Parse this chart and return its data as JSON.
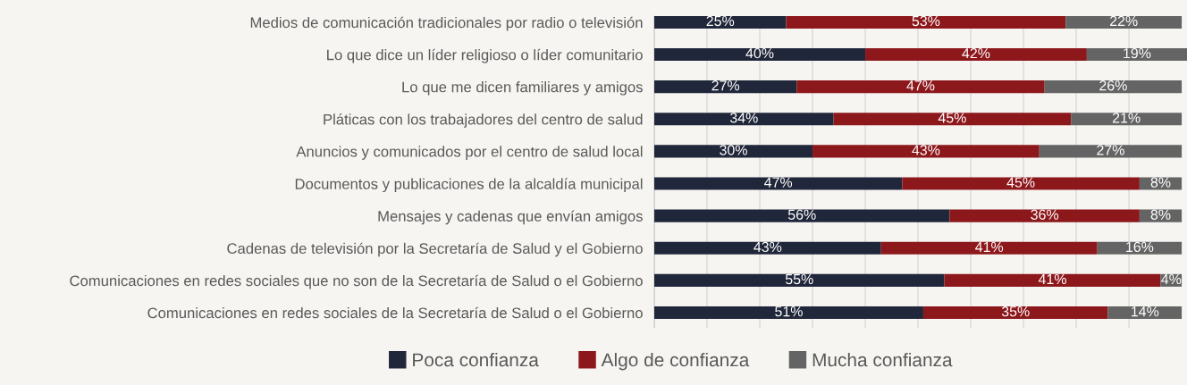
{
  "chart_data": {
    "type": "bar",
    "orientation": "horizontal",
    "stacked": true,
    "categories": [
      "Medios de comunicación tradicionales por radio o televisión",
      "Lo que dice un líder religioso o líder comunitario",
      "Lo que me dicen familiares y amigos",
      "Pláticas con los trabajadores del centro de salud",
      "Anuncios y comunicados por el centro de salud local",
      "Documentos y publicaciones de la alcaldía municipal",
      "Mensajes y cadenas que envían amigos",
      "Cadenas de televisión por la Secretaría de Salud y el Gobierno",
      "Comunicaciones en redes sociales que no son de la Secretaría de Salud o el Gobierno",
      "Comunicaciones en redes sociales de la Secretaría de Salud o el Gobierno"
    ],
    "series": [
      {
        "name": "Poca confianza",
        "color": "#21273a",
        "values": [
          25,
          40,
          27,
          34,
          30,
          47,
          56,
          43,
          55,
          51
        ],
        "value_labels": [
          "25%",
          "40%",
          "27%",
          "34%",
          "30%",
          "47%",
          "56%",
          "43%",
          "55%",
          "51%"
        ]
      },
      {
        "name": "Algo de confianza",
        "color": "#8d181c",
        "values": [
          53,
          42,
          47,
          45,
          43,
          45,
          36,
          41,
          41,
          35
        ],
        "value_labels": [
          "53%",
          "42%",
          "47%",
          "45%",
          "43%",
          "45%",
          "36%",
          "41%",
          "41%",
          "35%"
        ]
      },
      {
        "name": "Mucha confianza",
        "color": "#646464",
        "values": [
          22,
          19,
          26,
          21,
          27,
          8,
          8,
          16,
          4,
          14
        ],
        "value_labels": [
          "22%",
          "19%",
          "26%",
          "21%",
          "27%",
          "8%",
          "8%",
          "16%",
          "4%",
          "14%"
        ]
      }
    ],
    "xlim": [
      0,
      101
    ],
    "xticks": [
      {
        "value": 0,
        "label": null
      },
      {
        "value": 10,
        "label": null
      },
      {
        "value": 20,
        "label": null
      },
      {
        "value": 30,
        "label": null
      },
      {
        "value": 40,
        "label": null
      },
      {
        "value": 50,
        "label": null
      },
      {
        "value": 60,
        "label": null
      },
      {
        "value": 70,
        "label": null
      },
      {
        "value": 80,
        "label": null
      },
      {
        "value": 90,
        "label": null
      }
    ],
    "tick_labels": "y",
    "grid": "x",
    "legend": "bottom",
    "marker": "square"
  }
}
